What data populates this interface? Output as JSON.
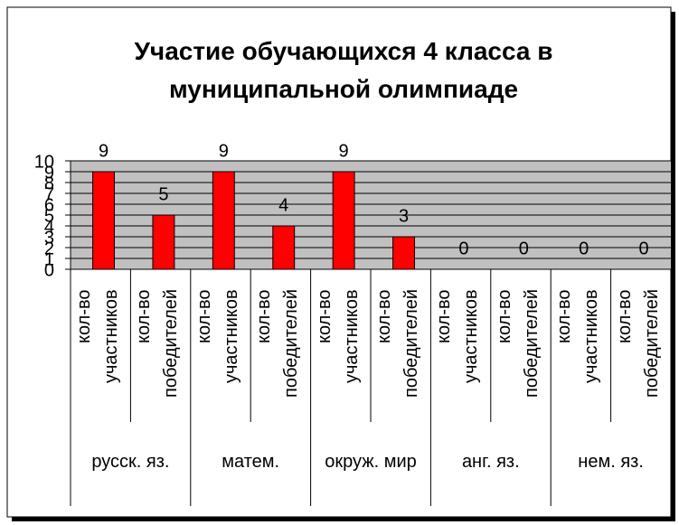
{
  "chart_data": {
    "type": "bar",
    "title": "Участие обучающихся 4 класса в муниципальной олимпиаде",
    "categories": [
      "кол-во участников",
      "кол-во победителей",
      "кол-во участников",
      "кол-во победителей",
      "кол-во участников",
      "кол-во победителей",
      "кол-во участников",
      "кол-во победителей",
      "кол-во участников",
      "кол-во победителей"
    ],
    "groups": [
      "русск. яз.",
      "матем.",
      "окруж. мир",
      "анг. яз.",
      "нем. яз."
    ],
    "values": [
      9,
      5,
      9,
      4,
      9,
      3,
      0,
      0,
      0,
      0
    ],
    "color": "#ff0000",
    "plot_background": "#c0c0c0",
    "ylim": [
      0,
      10
    ],
    "yticks": [
      0,
      1,
      2,
      3,
      4,
      5,
      6,
      7,
      8,
      9,
      10
    ],
    "grid": true
  }
}
